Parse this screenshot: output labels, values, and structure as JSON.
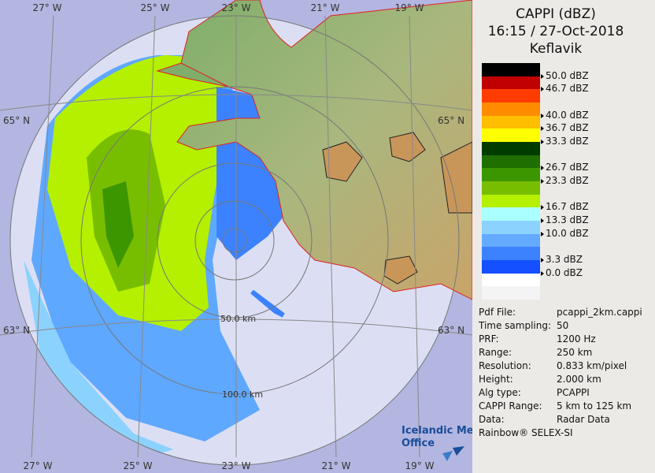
{
  "header": {
    "lines": [
      "CAPPI (dBZ)",
      "16:15 / 27-Oct-2018",
      "Keflavik"
    ]
  },
  "legend": {
    "bands": [
      {
        "color": "#000000",
        "label": null
      },
      {
        "color": "#c00000",
        "label": "50.0 dBZ"
      },
      {
        "color": "#ff3c00",
        "label": "46.7 dBZ"
      },
      {
        "color": "#ff8c00",
        "label": null
      },
      {
        "color": "#ffbe00",
        "label": "40.0 dBZ"
      },
      {
        "color": "#ffff00",
        "label": "36.7 dBZ"
      },
      {
        "color": "#003c00",
        "label": "33.3 dBZ"
      },
      {
        "color": "#1e6e00",
        "label": null
      },
      {
        "color": "#3c9600",
        "label": "26.7 dBZ"
      },
      {
        "color": "#78be00",
        "label": "23.3 dBZ"
      },
      {
        "color": "#b4f000",
        "label": null
      },
      {
        "color": "#aaffff",
        "label": "16.7 dBZ"
      },
      {
        "color": "#8cd2ff",
        "label": "13.3 dBZ"
      },
      {
        "color": "#64aaff",
        "label": "10.0 dBZ"
      },
      {
        "color": "#3c82ff",
        "label": null
      },
      {
        "color": "#1450ff",
        "label": "3.3 dBZ"
      },
      {
        "color": "#ffffff",
        "label": "0.0 dBZ"
      },
      {
        "color": "#f4f4f4",
        "label": null
      }
    ]
  },
  "info": {
    "rows": [
      [
        "Pdf File:",
        "pcappi_2km.cappi"
      ],
      [
        "Time sampling:",
        "50"
      ],
      [
        "PRF:",
        "1200 Hz"
      ],
      [
        "Range:",
        "250 km"
      ],
      [
        "Resolution:",
        "0.833 km/pixel"
      ],
      [
        "Height:",
        "2.000 km"
      ],
      [
        "Alg type:",
        "PCAPPI"
      ],
      [
        "CAPPI Range:",
        "5 km to 125 km"
      ],
      [
        "Data:",
        "Radar Data"
      ]
    ],
    "footer": "Rainbow® SELEX-SI"
  },
  "map": {
    "top_labels": [
      "27° W",
      "25° W",
      "23° W",
      "21° W",
      "19° W"
    ],
    "bottom_labels": [
      "27° W",
      "25° W",
      "23° W",
      "21° W",
      "19° W"
    ],
    "left_labels": [
      "65° N",
      "63° N"
    ],
    "right_labels": [
      "65° N",
      "63° N"
    ],
    "range_labels": [
      "50.0 km",
      "100.0 km"
    ],
    "logo": [
      "Icelandic Met",
      "Office"
    ]
  }
}
